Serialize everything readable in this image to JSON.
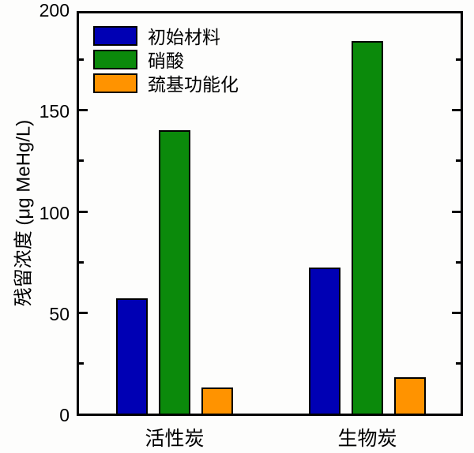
{
  "figure": {
    "background_color": "#fdfdfc",
    "frame_color": "#000000"
  },
  "chart_data": {
    "type": "bar",
    "title": "",
    "xlabel": "",
    "ylabel": "残留浓度 (μg MeHg/L)",
    "categories": [
      "活性炭",
      "生物炭"
    ],
    "series": [
      {
        "name": "初始材料",
        "color": "#0000b4",
        "values": [
          57,
          72
        ]
      },
      {
        "name": "硝酸",
        "color": "#0b8a0b",
        "values": [
          140,
          184
        ]
      },
      {
        "name": "巯基功能化",
        "color": "#ff9300",
        "values": [
          13,
          18
        ]
      }
    ],
    "ylim": [
      0,
      200
    ],
    "ytick_labels": [
      "0",
      "50",
      "100",
      "150",
      "200"
    ],
    "yticks_major": [
      0,
      50,
      100,
      150,
      200
    ],
    "yticks_minor": [
      25,
      75,
      125,
      175
    ],
    "grid": false,
    "legend_position": "top-left",
    "bar_border_color": "#000000",
    "tick_direction": "in",
    "tick_sides": [
      "left",
      "right"
    ]
  }
}
